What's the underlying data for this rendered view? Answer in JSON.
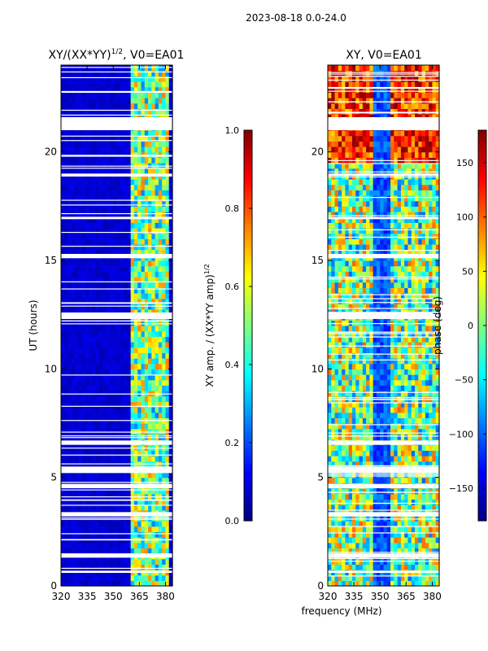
{
  "suptitle": "2023-08-18 0.0-24.0",
  "xlabel_shared": "frequency (MHz)",
  "colors": {
    "jet": [
      "#00007f",
      "#0000ff",
      "#007fff",
      "#00ffff",
      "#7fff7f",
      "#ffff00",
      "#ff7f00",
      "#ff0000",
      "#7f0000"
    ],
    "flag": "#ffffff"
  },
  "chart_data": [
    {
      "type": "heatmap",
      "title": "XY/(XX*YY)^1/2, V0=EA01",
      "title_main": "XY/(XX*YY)",
      "title_exp": "1/2",
      "title_tail": ", V0=EA01",
      "xlabel": "",
      "ylabel": "UT (hours)",
      "xlim": [
        320,
        384
      ],
      "ylim": [
        0,
        24
      ],
      "xticks": [
        320,
        335,
        350,
        365,
        380
      ],
      "yticks": [
        0,
        5,
        10,
        15,
        20
      ],
      "colorbar": {
        "label": "XY amp. / (XX*YY amp)^1/2",
        "label_main": "XY amp. / (XX*YY amp)",
        "label_exp": "1/2",
        "range": [
          0.0,
          1.0
        ],
        "ticks": [
          "0.0",
          "0.2",
          "0.4",
          "0.6",
          "0.8",
          "1.0"
        ],
        "tick_values": [
          0.0,
          0.2,
          0.4,
          0.6,
          0.8,
          1.0
        ]
      },
      "flagged_hours": [
        [
          21.0,
          21.6
        ],
        [
          18.9,
          19.0
        ],
        [
          16.9,
          17.0
        ],
        [
          15.1,
          15.3
        ],
        [
          12.3,
          12.6
        ],
        [
          6.5,
          6.7
        ],
        [
          5.2,
          5.5
        ],
        [
          4.5,
          4.7
        ],
        [
          3.2,
          3.4
        ],
        [
          1.3,
          1.5
        ],
        [
          0.6,
          0.7
        ]
      ],
      "bright_band_mhz": [
        361,
        382
      ],
      "background_value": 0.05,
      "band_value_range": [
        0.25,
        0.75
      ]
    },
    {
      "type": "heatmap",
      "title": "XY, V0=EA01",
      "xlabel": "",
      "ylabel": "",
      "xlim": [
        320,
        384
      ],
      "ylim": [
        0,
        24
      ],
      "xticks": [
        320,
        335,
        350,
        365,
        380
      ],
      "yticks": [
        0,
        5,
        10,
        15,
        20
      ],
      "colorbar": {
        "label": "phase (deg)",
        "range": [
          -180,
          180
        ],
        "ticks": [
          "−150",
          "−100",
          "−50",
          "0",
          "50",
          "100",
          "150"
        ],
        "tick_values": [
          -150,
          -100,
          -50,
          0,
          50,
          100,
          150
        ]
      },
      "flagged_hours": [
        [
          21.0,
          21.6
        ],
        [
          18.9,
          19.0
        ],
        [
          16.9,
          17.0
        ],
        [
          15.1,
          15.3
        ],
        [
          12.3,
          12.6
        ],
        [
          6.5,
          6.7
        ],
        [
          5.2,
          5.5
        ],
        [
          4.5,
          4.7
        ],
        [
          3.2,
          3.4
        ],
        [
          1.3,
          1.5
        ],
        [
          0.6,
          0.7
        ]
      ],
      "low_phase_band_mhz": [
        346,
        356
      ]
    }
  ]
}
